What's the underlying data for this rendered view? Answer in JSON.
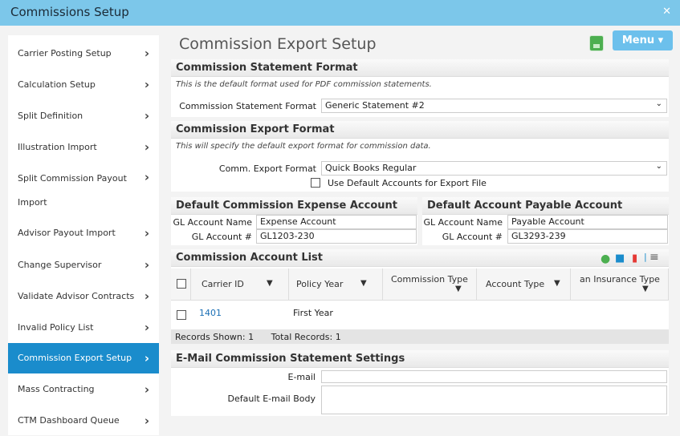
{
  "window": {
    "title": "Commissions Setup",
    "close_icon": "close-icon"
  },
  "sidebar": {
    "items": [
      {
        "label": "Carrier Posting Setup"
      },
      {
        "label": "Calculation Setup"
      },
      {
        "label": "Split Definition"
      },
      {
        "label": "Illustration Import"
      },
      {
        "label": "Split Commission Payout",
        "label2": "Import"
      },
      {
        "label": "Advisor Payout Import"
      },
      {
        "label": "Change Supervisor"
      },
      {
        "label": "Validate Advisor Contracts"
      },
      {
        "label": "Invalid Policy List"
      },
      {
        "label": "Commission Export Setup",
        "active": true
      },
      {
        "label": "Mass Contracting"
      },
      {
        "label": "CTM Dashboard Queue"
      }
    ]
  },
  "main": {
    "title": "Commission Export Setup",
    "menu_label": "Menu ▾",
    "statement": {
      "header": "Commission Statement Format",
      "note": "This is the default format used for PDF commission statements.",
      "label": "Commission Statement Format",
      "value": "Generic Statement #2"
    },
    "export": {
      "header": "Commission Export Format",
      "note": "This will specify the default export format for commission data.",
      "label": "Comm. Export Format",
      "value": "Quick Books Regular",
      "checkbox_label": "Use Default Accounts for Export File",
      "checked": false
    },
    "expense": {
      "header": "Default Commission Expense Account",
      "name_label": "GL Account Name",
      "name_value": "Expense Account",
      "num_label": "GL Account #",
      "num_value": "GL1203-230"
    },
    "payable": {
      "header": "Default Account Payable Account",
      "name_label": "GL Account Name",
      "name_value": "Payable Account",
      "num_label": "GL Account #",
      "num_value": "GL3293-239"
    },
    "list": {
      "header": "Commission Account List",
      "columns": [
        "Carrier ID",
        "Policy Year",
        "Commission Type",
        "Account Type",
        "an Insurance Type"
      ],
      "rows": [
        {
          "carrier_id": "1401",
          "policy_year": "First Year"
        }
      ],
      "records_shown": "Records Shown: 1",
      "total_records": "Total Records: 1"
    },
    "email": {
      "header": "E-Mail Commission Statement Settings",
      "email_label": "E-mail",
      "email_value": "",
      "body_label": "Default E-mail Body",
      "body_value": ""
    }
  },
  "colors": {
    "titlebar": "#7cc7ea",
    "active": "#1a8ccc",
    "menu": "#6cc0ec",
    "link": "#1a6fb5",
    "save": "#4caf50"
  }
}
